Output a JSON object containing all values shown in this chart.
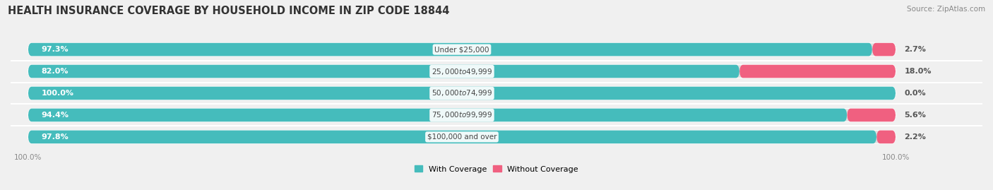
{
  "title": "HEALTH INSURANCE COVERAGE BY HOUSEHOLD INCOME IN ZIP CODE 18844",
  "source": "Source: ZipAtlas.com",
  "categories": [
    "Under $25,000",
    "$25,000 to $49,999",
    "$50,000 to $74,999",
    "$75,000 to $99,999",
    "$100,000 and over"
  ],
  "with_coverage": [
    97.3,
    82.0,
    100.0,
    94.4,
    97.8
  ],
  "without_coverage": [
    2.7,
    18.0,
    0.0,
    5.6,
    2.2
  ],
  "color_with": "#45BCBC",
  "color_with_light": "#7FD4D4",
  "color_without": "#F06080",
  "color_without_light": "#F4A0B0",
  "bg_color": "#f0f0f0",
  "bar_bg": "#e0e0e0",
  "title_fontsize": 10.5,
  "label_fontsize": 8.0,
  "cat_fontsize": 7.5,
  "tick_fontsize": 7.5,
  "legend_fontsize": 8.0,
  "source_fontsize": 7.5
}
